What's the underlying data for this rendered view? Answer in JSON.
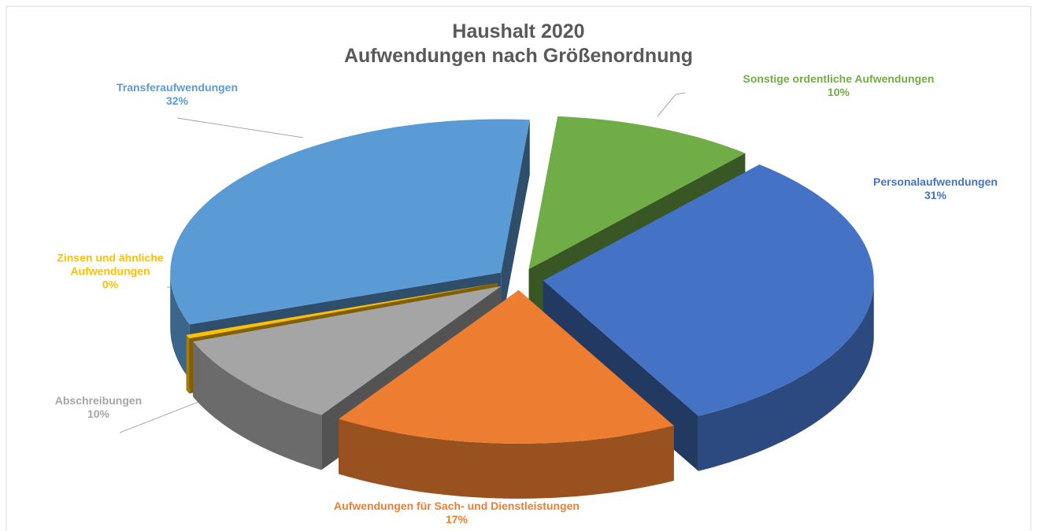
{
  "chart_data": {
    "type": "pie3d",
    "title": "Haushalt 2020",
    "subtitle": "Aufwendungen nach Größenordnung",
    "categories": [
      "Sonstige ordentliche Aufwendungen",
      "Personalaufwendungen",
      "Aufwendungen für Sach- und Dienstleistungen",
      "Abschreibungen",
      "Zinsen und ähnliche Aufwendungen",
      "Transferaufwendungen"
    ],
    "values": [
      10,
      31,
      17,
      10,
      0.4,
      32
    ],
    "value_labels": [
      "10%",
      "31%",
      "17%",
      "10%",
      "0%",
      "32%"
    ],
    "colors": [
      "#70ad47",
      "#4472c4",
      "#ed7d31",
      "#a5a5a5",
      "#ffc000",
      "#5b9bd5"
    ]
  }
}
